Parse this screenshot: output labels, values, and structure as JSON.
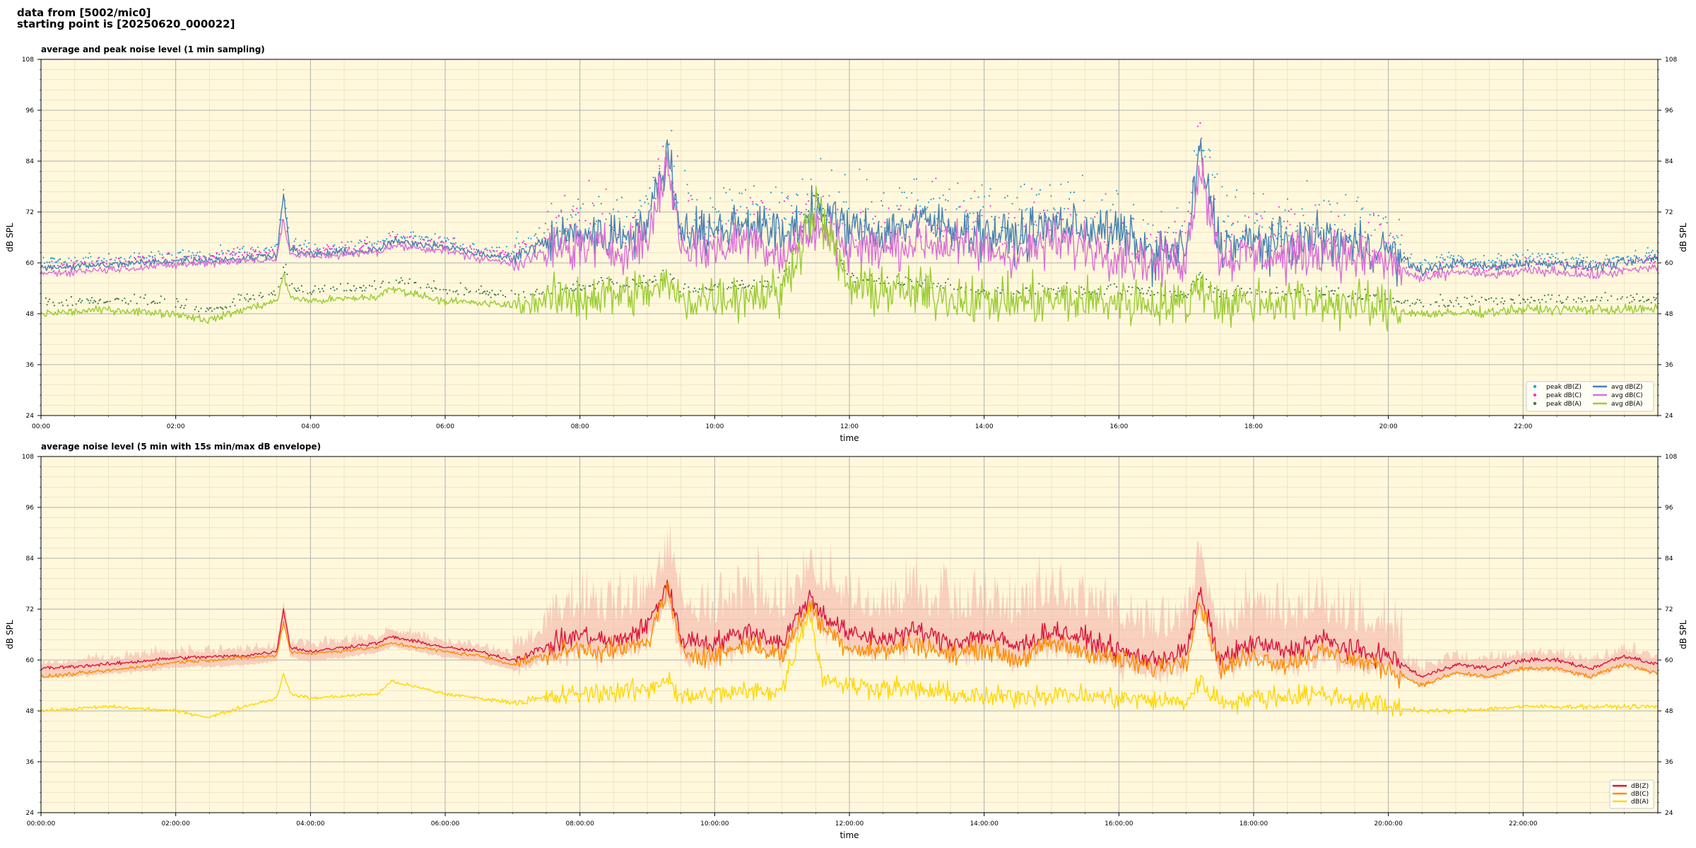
{
  "header": {
    "line1": "data from [5002/mic0]",
    "line2": "starting point is [20250620_000022]"
  },
  "chart_data": [
    {
      "type": "line",
      "title": "average and peak noise level (1 min sampling)",
      "xlabel": "time",
      "ylabel": "dB SPL",
      "ylim": [
        24,
        108
      ],
      "yticks": [
        24,
        36,
        48,
        60,
        72,
        84,
        96,
        108
      ],
      "xlim_hours": [
        0,
        24
      ],
      "xtick_labels": [
        "00:00",
        "02:00",
        "04:00",
        "06:00",
        "08:00",
        "10:00",
        "12:00",
        "14:00",
        "16:00",
        "18:00",
        "20:00",
        "22:00"
      ],
      "grid": true,
      "background": "#fff8dc",
      "legend_position": "bottom-right",
      "legend": [
        {
          "label": "peak dB(Z)",
          "marker": "dot",
          "color": "#2a9fd6"
        },
        {
          "label": "avg dB(Z)",
          "marker": "line",
          "color": "#4682b4"
        },
        {
          "label": "peak dB(C)",
          "marker": "dot",
          "color": "#ff2fd8"
        },
        {
          "label": "avg dB(C)",
          "marker": "line",
          "color": "#da70d6"
        },
        {
          "label": "peak dB(A)",
          "marker": "dot",
          "color": "#3d7a4a"
        },
        {
          "label": "avg dB(A)",
          "marker": "line",
          "color": "#9acd32"
        }
      ],
      "series": [
        {
          "name": "avg dB(Z)",
          "color": "#4682b4",
          "x": [
            0,
            1,
            2,
            3,
            3.5,
            3.6,
            3.7,
            4,
            5,
            5.2,
            6,
            6.5,
            7,
            7.5,
            8,
            8.5,
            9,
            9.3,
            9.5,
            10,
            10.5,
            11,
            11.5,
            12,
            12.5,
            13,
            13.5,
            14,
            14.5,
            15,
            15.5,
            16,
            16.5,
            17,
            17.2,
            17.5,
            18,
            18.5,
            19,
            19.5,
            20,
            20.5,
            21,
            21.5,
            22,
            22.5,
            23,
            23.5,
            24
          ],
          "y": [
            59,
            59.5,
            60.5,
            61,
            62,
            76,
            63,
            62,
            63,
            65,
            64,
            62,
            61,
            65,
            67,
            66,
            69,
            86,
            68,
            67,
            70,
            66,
            72,
            68,
            67,
            70,
            68,
            67,
            66,
            69,
            68,
            67,
            62,
            63,
            86,
            64,
            65,
            64,
            66,
            64,
            63,
            58,
            60,
            59,
            60,
            60,
            59,
            60,
            61
          ]
        },
        {
          "name": "avg dB(C)",
          "color": "#da70d6",
          "x": [
            0,
            1,
            2,
            3,
            3.5,
            3.6,
            3.7,
            4,
            5,
            5.2,
            6,
            6.5,
            7,
            7.5,
            8,
            8.5,
            9,
            9.3,
            9.5,
            10,
            10.5,
            11,
            11.5,
            12,
            12.5,
            13,
            13.5,
            14,
            14.5,
            15,
            15.5,
            16,
            16.5,
            17,
            17.2,
            17.5,
            18,
            18.5,
            19,
            19.5,
            20,
            20.5,
            21,
            21.5,
            22,
            22.5,
            23,
            23.5,
            24
          ],
          "y": [
            57.5,
            58.5,
            59.5,
            60.5,
            61,
            70,
            62,
            61.5,
            62.5,
            64,
            63,
            61,
            60,
            62,
            64,
            63,
            65,
            84,
            64,
            63,
            66,
            62,
            68,
            64,
            63,
            65,
            64,
            63,
            62,
            65,
            64,
            62,
            60,
            61,
            84,
            61,
            62,
            61,
            63,
            61,
            60,
            56,
            58,
            57,
            58,
            58,
            57,
            58,
            59
          ]
        },
        {
          "name": "avg dB(A)",
          "color": "#9acd32",
          "x": [
            0,
            1,
            2,
            2.5,
            3,
            3.5,
            3.6,
            3.7,
            4,
            5,
            5.2,
            6,
            7,
            8,
            9,
            9.3,
            9.5,
            10,
            11,
            11.5,
            12,
            13,
            14,
            15,
            16,
            17,
            17.2,
            17.5,
            18,
            19,
            20,
            20.5,
            21,
            22,
            23,
            24
          ],
          "y": [
            48,
            49,
            48,
            46.5,
            49,
            51,
            57,
            52,
            51,
            52,
            54,
            51,
            50,
            52,
            53,
            55,
            51,
            52,
            53,
            74,
            54,
            53,
            51,
            51,
            51,
            50,
            55,
            50,
            51,
            51,
            49,
            48,
            48,
            49,
            49,
            49
          ]
        }
      ],
      "scatter": [
        {
          "name": "peak dB(Z)",
          "color": "#2a9fd6"
        },
        {
          "name": "peak dB(C)",
          "color": "#ff2fd8"
        },
        {
          "name": "peak dB(A)",
          "color": "#3d7a4a"
        }
      ]
    },
    {
      "type": "area",
      "title": "average noise level (5 min with 15s min/max dB envelope)",
      "xlabel": "time",
      "ylabel": "dB SPL",
      "ylim": [
        24,
        108
      ],
      "yticks": [
        24,
        36,
        48,
        60,
        72,
        84,
        96,
        108
      ],
      "xlim_hours": [
        0,
        24
      ],
      "xtick_labels": [
        "00:00:00",
        "02:00:00",
        "04:00:00",
        "06:00:00",
        "08:00:00",
        "10:00:00",
        "12:00:00",
        "14:00:00",
        "16:00:00",
        "18:00:00",
        "20:00:00",
        "22:00:00"
      ],
      "grid": true,
      "background": "#fff8dc",
      "envelope_color": "#f4b6a8",
      "legend_position": "bottom-right",
      "legend": [
        {
          "label": "dB(Z)",
          "color": "#dc143c"
        },
        {
          "label": "dB(C)",
          "color": "#ff8c00"
        },
        {
          "label": "dB(A)",
          "color": "#ffd700"
        }
      ],
      "series": [
        {
          "name": "dB(Z)",
          "color": "#dc143c",
          "x": [
            0,
            1,
            2,
            3,
            3.5,
            3.6,
            3.7,
            4,
            5,
            5.2,
            6,
            6.5,
            7,
            7.5,
            8,
            8.5,
            9,
            9.3,
            9.5,
            10,
            10.5,
            11,
            11.4,
            11.6,
            12,
            12.5,
            13,
            13.5,
            14,
            14.5,
            15,
            15.5,
            16,
            16.5,
            17,
            17.2,
            17.5,
            18,
            18.5,
            19,
            19.5,
            20,
            20.5,
            21,
            21.5,
            22,
            22.5,
            23,
            23.5,
            24
          ],
          "y": [
            58,
            59,
            60.5,
            61,
            62,
            72,
            63,
            62,
            64,
            65.5,
            63,
            62,
            60,
            63,
            66,
            64,
            68,
            78,
            65,
            64,
            67,
            64,
            75,
            71,
            66,
            65,
            67,
            64,
            66,
            63,
            67,
            65,
            62,
            60,
            62,
            76,
            60,
            64,
            62,
            65,
            62,
            61,
            56,
            59,
            58,
            60,
            60,
            58,
            61,
            59
          ]
        },
        {
          "name": "dB(C)",
          "color": "#ff8c00",
          "x": [
            0,
            1,
            2,
            3,
            3.5,
            3.6,
            3.7,
            4,
            5,
            5.2,
            6,
            6.5,
            7,
            7.5,
            8,
            8.5,
            9,
            9.3,
            9.5,
            10,
            10.5,
            11,
            11.4,
            11.6,
            12,
            12.5,
            13,
            13.5,
            14,
            14.5,
            15,
            15.5,
            16,
            16.5,
            17,
            17.2,
            17.5,
            18,
            18.5,
            19,
            19.5,
            20,
            20.5,
            21,
            21.5,
            22,
            22.5,
            23,
            23.5,
            24
          ],
          "y": [
            56,
            57.5,
            59.5,
            60.5,
            61,
            69,
            62,
            61.5,
            63,
            64,
            62,
            61,
            59,
            61,
            63,
            62,
            64,
            77,
            62,
            61,
            64,
            61,
            73,
            68,
            63,
            62,
            64,
            61,
            63,
            60,
            64,
            62,
            60,
            58,
            60,
            74,
            58,
            61,
            59,
            62,
            60,
            58,
            54,
            57,
            56,
            58,
            58,
            56,
            59,
            57
          ]
        },
        {
          "name": "dB(A)",
          "color": "#ffd700",
          "x": [
            0,
            1,
            2,
            2.5,
            3,
            3.5,
            3.6,
            3.7,
            4,
            5,
            5.2,
            6,
            7,
            8,
            9,
            9.3,
            9.5,
            10,
            11,
            11.4,
            11.6,
            12,
            13,
            14,
            15,
            16,
            17,
            17.2,
            17.5,
            18,
            19,
            20,
            20.5,
            21,
            22,
            23,
            24
          ],
          "y": [
            48,
            49,
            48,
            46.5,
            49,
            51,
            57,
            52,
            51,
            52,
            55,
            52,
            50,
            52,
            53,
            56,
            51,
            52,
            53,
            72,
            56,
            54,
            53,
            51,
            52,
            51,
            50,
            55,
            50,
            51,
            52,
            49,
            48,
            48,
            49,
            49,
            49
          ]
        }
      ]
    }
  ]
}
